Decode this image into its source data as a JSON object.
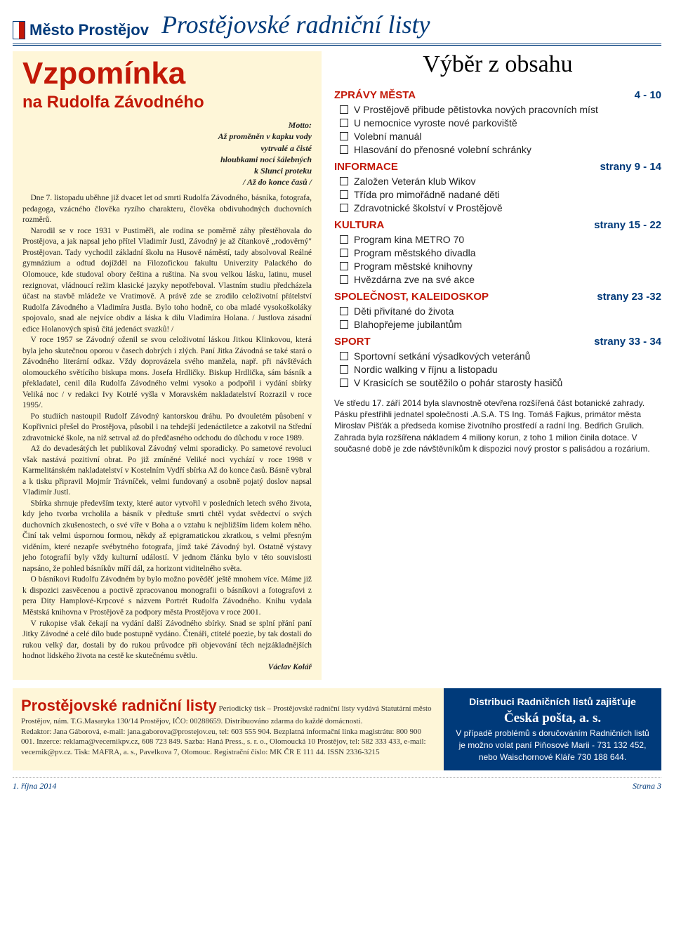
{
  "colors": {
    "red": "#c21807",
    "blue": "#003a7a",
    "cream": "#fef6d8",
    "text": "#222"
  },
  "mast": {
    "city": "Město Prostějov",
    "title": "Prostějovské radniční listy"
  },
  "article": {
    "title": "Vzpomínka",
    "subtitle": "na Rudolfa Závodného",
    "motto_label": "Motto:",
    "motto": "Až proměněn v kapku vody\nvytrvalé a čisté\nhloubkami nocí šálebných\nk Slunci proteku\n/ Až do konce časů /",
    "paras": [
      "Dne 7. listopadu uběhne již dvacet let od smrti Rudolfa Závodného, básníka, fotografa, pedagoga, vzácného člověka ryzího charakteru, člověka obdivuhodných duchovních rozměrů.",
      "Narodil se v roce 1931 v Pustiměři, ale rodina se poměrně záhy přestěhovala do Prostějova, a jak napsal jeho přítel Vladimír Justl, Závodný je až čítankově „rodověrný\" Prostějovan. Tady vychodil základní školu na Husově náměstí, tady absolvoval Reálné gymnázium a odtud dojížděl na Filozofickou fakultu Univerzity Palackého do Olomouce, kde studoval obory čeština a ruština. Na svou velkou lásku, latinu, musel rezignovat, vládnoucí režim klasické jazyky nepotřeboval. Vlastním studiu předcházela účast na stavbě mládeže ve Vratimově. A právě zde se zrodilo celoživotní přátelství Rudolfa Závodného a Vladimíra Justla. Bylo toho hodně, co oba mladé vysokoškoláky spojovalo, snad ale nejvíce obdiv a láska k dílu Vladimíra Holana. / Justlova zásadní edice Holanových spisů čítá jedenáct svazků! /",
      "V roce 1957 se Závodný oženil se svou celoživotní láskou Jitkou Klinkovou, která byla jeho skutečnou oporou v časech dobrých i zlých. Paní Jitka Závodná se také stará o Závodného literární odkaz. Vždy doprovázela svého manžela, např. při návštěvách olomouckého světícího biskupa mons. Josefa Hrdličky. Biskup Hrdlička, sám básník a překladatel, cenil díla Rudolfa Závodného velmi vysoko a podpořil i vydání sbírky Veliká noc / v redakci Ivy Kotrlé vyšla v Moravském nakladatelství Rozrazil v roce 1995/.",
      "Po studiích nastoupil Rudolf Závodný kantorskou dráhu. Po dvouletém působení v Kopřivnici přešel do Prostějova, působil i na tehdejší jedenáctiletce a zakotvil na Střední zdravotnické škole, na níž setrval až do předčasného odchodu do důchodu v roce 1989.",
      "Až do devadesátých let publikoval Závodný velmi sporadicky. Po sametové revoluci však nastává pozitivní obrat. Po již zmíněné Veliké noci vychází v roce 1998 v Karmelitánském nakladatelství v Kostelním Vydří sbírka Až do konce časů. Básně vybral a k tisku připravil Mojmír Trávníček, velmi fundovaný a osobně pojatý doslov napsal Vladimír Justl.",
      "Sbírka shrnuje především texty, které autor vytvořil v posledních letech svého života, kdy jeho tvorba vrcholila a básník v předtuše smrti chtěl vydat svědectví o svých duchovních zkušenostech, o své víře v Boha a o vztahu k nejbližším lidem kolem něho. Činí tak velmi úspornou formou, někdy až epigramatickou zkratkou, s velmi přesným viděním, které nezapře svébytného fotografa, jímž také Závodný byl. Ostatně výstavy jeho fotografií byly vždy kulturní událostí. V jednom článku bylo v této souvislosti napsáno, že pohled básníkův míří dál, za horizont viditelného světa.",
      "O básníkovi Rudolfu Závodném by bylo možno pověděť ještě mnohem více. Máme již k dispozici zasvěcenou a poctivě zpracovanou monografii o básníkovi a fotografovi z pera Dity Hamplové-Krpcové s názvem Portrét Rudolfa Závodného. Knihu vydala Městská knihovna v Prostějově za podpory města Prostějova v roce 2001.",
      "V rukopise však čekají na vydání další Závodného sbírky. Snad se splní přání paní Jitky Závodné a celé dílo bude postupně vydáno. Čtenáři, ctitelé poezie, by tak dostali do rukou velký dar, dostali by do rukou průvodce při objevování těch nejzákladnějších hodnot lidského života na cestě ke skutečnému světlu."
    ],
    "author": "Václav Kolář"
  },
  "toc": {
    "heading": "Výběr z obsahu",
    "sections": [
      {
        "name": "ZPRÁVY MĚSTA",
        "pages": "4 - 10",
        "items": [
          "V Prostějově přibude pětistovka nových pracovních míst",
          "U nemocnice vyroste nové parkoviště",
          "Volební manuál",
          "Hlasování do přenosné volební schránky"
        ]
      },
      {
        "name": "INFORMACE",
        "pages": "strany 9 - 14",
        "items": [
          "Založen Veterán klub Wikov",
          "Třída pro mimořádně nadané děti",
          "Zdravotnické školství v Prostějově"
        ]
      },
      {
        "name": "KULTURA",
        "pages": "strany 15 - 22",
        "items": [
          "Program kina METRO 70",
          "Program městského divadla",
          "Program městské knihovny",
          "Hvězdárna zve na své akce"
        ]
      },
      {
        "name": "SPOLEČNOST, KALEIDOSKOP",
        "pages": "strany 23 -32",
        "items": [
          "Děti přivítané do života",
          "Blahopřejeme jubilantům"
        ]
      },
      {
        "name": "SPORT",
        "pages": "strany 33 - 34",
        "items": [
          "Sportovní setkání výsadkových veteránů",
          "Nordic walking v říjnu a listopadu",
          "V Krasicích se soutěžilo o pohár starosty hasičů"
        ]
      }
    ],
    "caption": "Ve středu 17. září 2014 byla slavnostně otevřena rozšířená část botanické zahrady. Pásku přestřihli jednatel společnosti .A.S.A. TS Ing. Tomáš Fajkus, primátor města Miroslav Pišťák a předseda komise životního prostředí a radní Ing. Bedřich Grulich.\nZahrada byla rozšířena nákladem 4 miliony korun, z toho 1 milion činila dotace. V současné době je zde návštěvníkům k dispozici nový prostor s palisádou a rozárium."
  },
  "imprint": {
    "title": "Prostějovské radniční listy",
    "body1": "Periodický tisk – Prostějovské radniční listy vydává Statutární město",
    "body2": "Prostějov, nám. T.G.Masaryka 130/14 Prostějov, IČO: 00288659. Distribuováno zdarma do každé domácnosti.",
    "body3": "Redaktor: Jana Gáborová, e-mail: jana.gaborova@prostejov.eu, tel: 603 555 904. Bezplatná informační linka magistrátu: 800 900 001. Inzerce: reklama@vecernikpv.cz, 608 723 849. Sazba: Haná Press., s. r. o., Olomoucká 10 Prostějov, tel: 582 333 433, e-mail: vecernik@pv.cz. Tisk: MAFRA, a. s., Pavelkova 7, Olomouc. Registrační číslo: MK ČR E 111 44. ISSN 2336-3215"
  },
  "dist": {
    "line1": "Distribuci Radničních listů zajišťuje",
    "line2": "Česká pošta, a. s.",
    "line3": "V případě problémů s doručováním Radničních listů",
    "line4": "je možno volat paní Piňosové Marii - 731 132 452,",
    "line5": "nebo Waischornové Kláře 730 188 644."
  },
  "foot": {
    "date": "1. října 2014",
    "page": "Strana 3"
  }
}
